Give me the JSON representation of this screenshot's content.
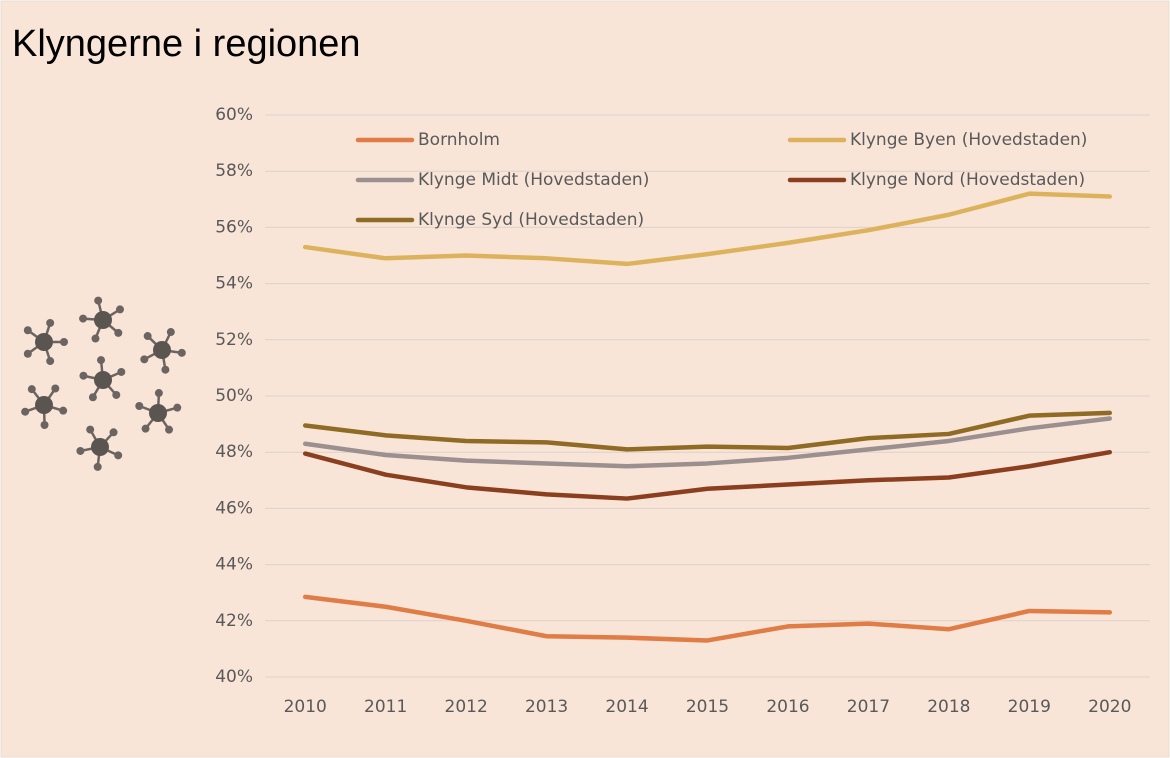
{
  "chart_data": {
    "type": "line",
    "title": "Klyngerne i regionen",
    "categories": [
      "2010",
      "2011",
      "2012",
      "2013",
      "2014",
      "2015",
      "2016",
      "2017",
      "2018",
      "2019",
      "2020"
    ],
    "series": [
      {
        "name": "Bornholm",
        "color": "#e07c45",
        "values": [
          42.85,
          42.5,
          42.0,
          41.45,
          41.4,
          41.3,
          41.8,
          41.9,
          41.7,
          42.35,
          42.3
        ]
      },
      {
        "name": "Klynge Byen (Hovedstaden)",
        "color": "#dcb35c",
        "values": [
          55.3,
          54.9,
          55.0,
          54.9,
          54.7,
          55.05,
          55.45,
          55.9,
          56.45,
          57.2,
          57.1
        ]
      },
      {
        "name": "Klynge Midt (Hovedstaden)",
        "color": "#9b8f8f",
        "values": [
          48.3,
          47.9,
          47.7,
          47.6,
          47.5,
          47.6,
          47.8,
          48.1,
          48.4,
          48.85,
          49.2
        ]
      },
      {
        "name": "Klynge Nord (Hovedstaden)",
        "color": "#8b3f1e",
        "values": [
          47.95,
          47.2,
          46.75,
          46.5,
          46.35,
          46.7,
          46.85,
          47.0,
          47.1,
          47.5,
          48.0
        ]
      },
      {
        "name": "Klynge Syd (Hovedstaden)",
        "color": "#8f6b25",
        "values": [
          48.95,
          48.6,
          48.4,
          48.35,
          48.1,
          48.2,
          48.15,
          48.5,
          48.65,
          49.3,
          49.4
        ]
      }
    ],
    "ylim": [
      40,
      60
    ],
    "yticks": [
      {
        "value": 40,
        "label": "40%"
      },
      {
        "value": 42,
        "label": "42%"
      },
      {
        "value": 44,
        "label": "44%"
      },
      {
        "value": 46,
        "label": "46%"
      },
      {
        "value": 48,
        "label": "48%"
      },
      {
        "value": 50,
        "label": "50%"
      },
      {
        "value": 52,
        "label": "52%"
      },
      {
        "value": 54,
        "label": "54%"
      },
      {
        "value": 56,
        "label": "56%"
      },
      {
        "value": 58,
        "label": "58%"
      },
      {
        "value": 60,
        "label": "60%"
      }
    ],
    "grid": true,
    "legend": "top"
  }
}
